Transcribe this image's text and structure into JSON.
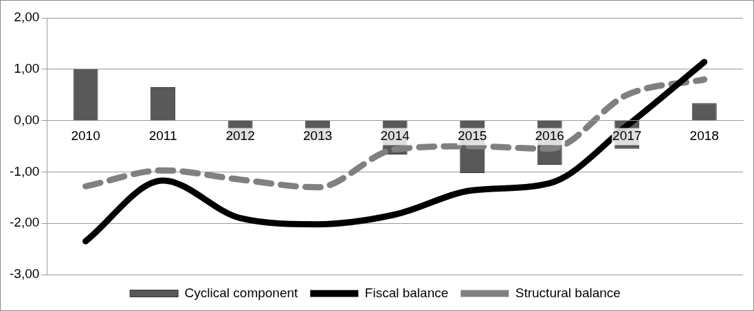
{
  "chart_data": {
    "type": "bar",
    "categories": [
      "2010",
      "2011",
      "2012",
      "2013",
      "2014",
      "2015",
      "2016",
      "2017",
      "2018"
    ],
    "series": [
      {
        "name": "Cyclical component",
        "color": "#595959",
        "values": [
          1.0,
          0.65,
          -0.38,
          -0.38,
          -0.66,
          -1.02,
          -0.86,
          -0.55,
          0.34
        ]
      },
      {
        "name": "Fiscal balance",
        "type": "line",
        "color": "#000000",
        "line_style": "solid",
        "values": [
          -2.35,
          -1.17,
          -1.9,
          -2.02,
          -1.83,
          -1.36,
          -1.22,
          -0.1,
          1.14
        ]
      },
      {
        "name": "Structural balance",
        "type": "line",
        "color": "#808080",
        "line_style": "dashed",
        "values": [
          -1.28,
          -0.97,
          -1.15,
          -1.3,
          -0.56,
          -0.5,
          -0.55,
          0.5,
          0.8
        ]
      }
    ],
    "ylim": [
      -3,
      2
    ],
    "yticks": [
      {
        "value": -3,
        "label": "-3,00"
      },
      {
        "value": -2,
        "label": "-2,00"
      },
      {
        "value": -1,
        "label": "-1,00"
      },
      {
        "value": 0,
        "label": "0,00"
      },
      {
        "value": 1,
        "label": "1,00"
      },
      {
        "value": 2,
        "label": "2,00"
      }
    ],
    "grid": "y",
    "legend": "bottom"
  }
}
